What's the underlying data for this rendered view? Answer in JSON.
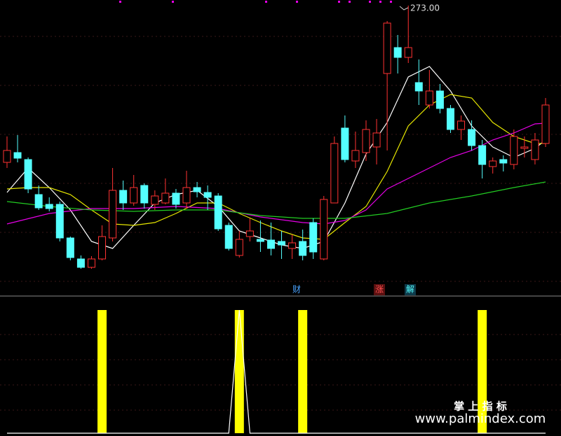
{
  "chart_data": [
    {
      "type": "candlestick",
      "up_color": "#ff3232",
      "down_color": "#54ffff",
      "open": [
        217,
        220.5,
        218,
        205.5,
        202,
        202,
        190,
        182.5,
        179.5,
        182.5,
        190,
        207,
        202.5,
        208.75,
        202,
        202.5,
        206,
        202.5,
        208,
        206.25,
        205,
        194.5,
        183.75,
        190.5,
        189.5,
        189.25,
        188.75,
        186.25,
        188.75,
        195.5,
        182.5,
        202.5,
        229.25,
        217.5,
        220.5,
        222.5,
        248.75,
        258,
        254.5,
        245.5,
        237.5,
        242.5,
        236.25,
        228.75,
        228.75,
        223,
        215.5,
        218,
        216.25,
        222,
        218,
        223.75
      ],
      "high": [
        226.25,
        226.75,
        218.75,
        208.75,
        204.5,
        203,
        190.5,
        183.75,
        183.5,
        194.5,
        215,
        210.5,
        212.5,
        209.5,
        207,
        211.25,
        207.5,
        214,
        210,
        208.75,
        206,
        195.5,
        192.5,
        197,
        196.25,
        195.5,
        192.5,
        191.25,
        193,
        197,
        205,
        226.25,
        233.75,
        228,
        232,
        232.5,
        267.5,
        262.5,
        273,
        253.75,
        250,
        245,
        237.5,
        233.75,
        232,
        225,
        218.75,
        219.5,
        228.75,
        226.25,
        227.5,
        240
      ],
      "low": [
        215,
        217,
        206,
        200,
        199.5,
        188.75,
        182,
        179,
        179,
        182,
        188.75,
        200,
        201.5,
        200.5,
        200,
        202,
        200.5,
        200.5,
        204.5,
        200,
        192.5,
        185.5,
        183,
        188.75,
        185,
        183.75,
        182.5,
        182.5,
        182,
        182.5,
        182,
        202.5,
        217,
        215,
        217.5,
        216.25,
        221.25,
        248.75,
        252.5,
        237.5,
        236.25,
        234.5,
        227.5,
        225,
        221.25,
        211.25,
        213,
        213.75,
        214.5,
        218.75,
        216.25,
        222.5
      ],
      "close": [
        221.25,
        218.5,
        207.5,
        200.75,
        200.5,
        190,
        183,
        179.5,
        182.5,
        190.5,
        207,
        202.5,
        208,
        202.5,
        205,
        206,
        202,
        208,
        206.5,
        204.5,
        193.25,
        186.25,
        189.5,
        192.5,
        188.75,
        186.25,
        187.5,
        188.25,
        183.75,
        185,
        203.75,
        223.75,
        218,
        221.25,
        228.75,
        227.5,
        266.75,
        254.5,
        258,
        242.5,
        242.5,
        236.25,
        228.75,
        231.75,
        223,
        216.25,
        217.5,
        216.75,
        226.25,
        222.5,
        225,
        237.5
      ],
      "series": [
        {
          "color": "#ffffff",
          "x": [
            0,
            2,
            4,
            6,
            8,
            10,
            12,
            14,
            16,
            18,
            20,
            22,
            24,
            26,
            28,
            30,
            32,
            34,
            36,
            38,
            40,
            42,
            44,
            46,
            48,
            50,
            51
          ],
          "values": [
            206.25,
            215,
            208,
            200,
            188.75,
            186.25,
            194.5,
            202.5,
            205.5,
            207,
            201.25,
            192.5,
            190,
            187.5,
            186.25,
            188.75,
            202.5,
            220,
            231.25,
            247.5,
            251.25,
            242.5,
            230,
            222.5,
            218.75,
            222,
            225
          ]
        },
        {
          "color": "#e6e600",
          "x": [
            0,
            2,
            4,
            6,
            8,
            10,
            12,
            14,
            16,
            18,
            20,
            22,
            24,
            26,
            28,
            30,
            32,
            34,
            36,
            38,
            40,
            42,
            44,
            46,
            48,
            50,
            51
          ],
          "values": [
            207.5,
            208,
            208,
            205.5,
            200,
            195,
            194.5,
            195.5,
            198.75,
            202.5,
            202.5,
            198.75,
            195.5,
            192.5,
            190,
            189.5,
            195.5,
            201.25,
            213.75,
            230,
            237.5,
            241.25,
            240,
            231.25,
            226.25,
            223.75,
            223.75
          ]
        },
        {
          "color": "#e600e6",
          "x": [
            0,
            4,
            8,
            12,
            16,
            20,
            24,
            28,
            30,
            32,
            34,
            36,
            38,
            40,
            42,
            44,
            46,
            48,
            50,
            51
          ],
          "values": [
            195,
            198.75,
            200.5,
            200.5,
            201.25,
            200.5,
            197.5,
            195.5,
            195,
            196.25,
            200,
            207.5,
            211.25,
            215,
            218.75,
            221.25,
            225,
            227.5,
            230.75,
            231
          ]
        },
        {
          "color": "#22cc22",
          "x": [
            0,
            4,
            8,
            12,
            16,
            20,
            24,
            28,
            32,
            36,
            40,
            44,
            48,
            51
          ],
          "values": [
            203,
            201.25,
            200,
            199.5,
            200,
            200,
            198,
            197,
            197,
            198.75,
            202.5,
            205,
            208,
            210
          ]
        }
      ],
      "ylim": [
        173.75,
        275
      ],
      "xlim": [
        0,
        51
      ],
      "max_label": "273.00",
      "annotations": [
        "财",
        "涨",
        "解"
      ]
    },
    {
      "type": "signal",
      "color": "#ffff00",
      "line_color": "#ffffff",
      "x": [
        9,
        22,
        28,
        45
      ],
      "values": [
        1,
        1,
        1,
        1
      ],
      "line_x": [
        0,
        21,
        22,
        23,
        51
      ],
      "line_values": [
        0,
        0,
        1,
        0,
        0
      ],
      "ylim": [
        0,
        1
      ],
      "xlim": [
        0,
        51
      ]
    }
  ],
  "watermark": {
    "title": "掌 上 指 标",
    "url": "www.palmindex.com"
  }
}
